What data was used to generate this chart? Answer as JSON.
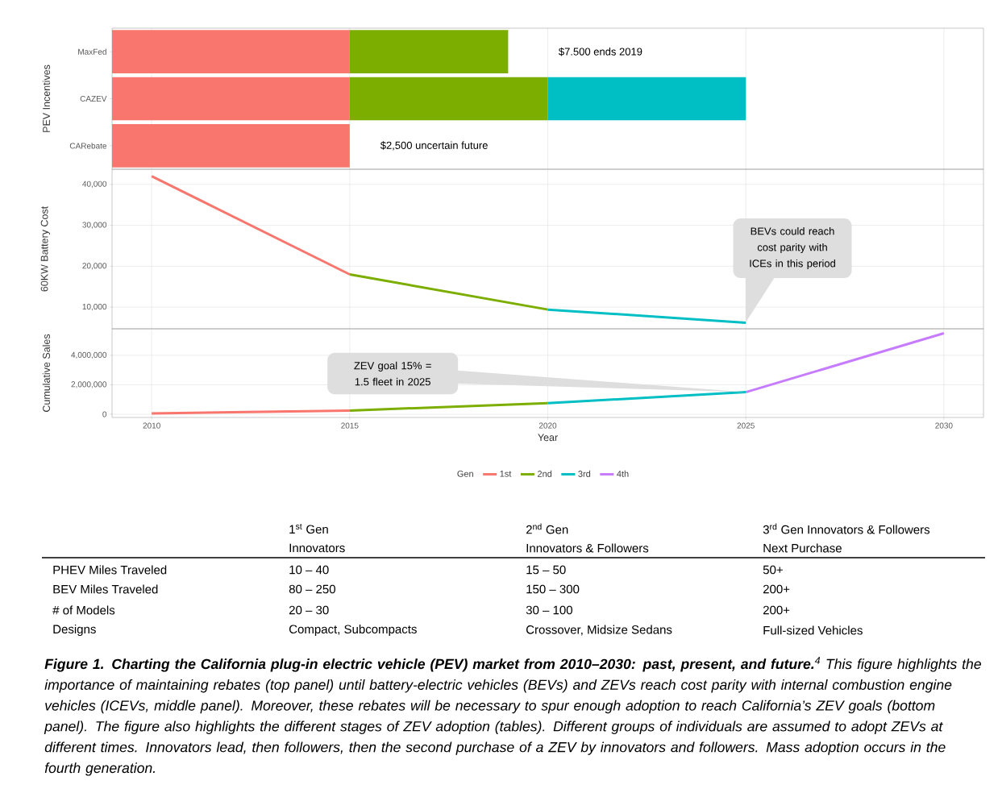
{
  "chart_data": [
    {
      "type": "bar",
      "orientation": "horizontal",
      "ylabel": "PEV Incentives",
      "categories": [
        "MaxFed",
        "CAZEV",
        "CARebate"
      ],
      "series": [
        {
          "color": "#f8766d",
          "base": [
            2009,
            2009,
            2009
          ],
          "values": [
            6,
            6,
            6
          ]
        },
        {
          "color": "#7cae00",
          "base": [
            2015,
            2015,
            null
          ],
          "values": [
            4,
            5,
            null
          ]
        },
        {
          "color": "#00bfc4",
          "base": [
            null,
            2020,
            null
          ],
          "values": [
            null,
            5,
            null
          ]
        }
      ],
      "xlim": [
        2009,
        2031
      ],
      "xticks": [
        2010,
        2015,
        2020,
        2025,
        2030
      ],
      "tick_labels": "y",
      "grid": "x",
      "annotations": [
        "$7.500 ends 2019",
        "$2,500 uncertain future"
      ]
    },
    {
      "type": "line",
      "ylabel": "60KW Battery Cost",
      "series": [
        {
          "color": "#f8766d",
          "x": [
            2010,
            2015
          ],
          "values": [
            42000,
            18000
          ]
        },
        {
          "color": "#7cae00",
          "x": [
            2015,
            2020
          ],
          "values": [
            18000,
            9400
          ]
        },
        {
          "color": "#00bfc4",
          "x": [
            2020,
            2025
          ],
          "values": [
            9400,
            6200
          ]
        }
      ],
      "xlim": [
        2009,
        2031
      ],
      "xticks": [
        2010,
        2015,
        2020,
        2025,
        2030
      ],
      "ylim": [
        4700,
        43700
      ],
      "yticks": [
        {
          "value": 10000,
          "label": "10,000"
        },
        {
          "value": 20000,
          "label": "20,000"
        },
        {
          "value": 30000,
          "label": "30,000"
        },
        {
          "value": 40000,
          "label": "40,000"
        }
      ],
      "tick_labels": "y",
      "grid": true,
      "annotations": [
        "BEVs could reach cost parity with ICEs in this period"
      ]
    },
    {
      "type": "line",
      "ylabel": "Cumulative Sales",
      "xlabel": "Year",
      "series": [
        {
          "name": "1st",
          "color": "#f8766d",
          "x": [
            2010,
            2015
          ],
          "values": [
            50000,
            250000
          ]
        },
        {
          "name": "2nd",
          "color": "#7cae00",
          "x": [
            2015,
            2020
          ],
          "values": [
            250000,
            750000
          ]
        },
        {
          "name": "3rd",
          "color": "#00bfc4",
          "x": [
            2020,
            2025
          ],
          "values": [
            750000,
            1500000
          ]
        },
        {
          "name": "4th",
          "color": "#c77cff",
          "x": [
            2025,
            2030
          ],
          "values": [
            1500000,
            5500000
          ]
        }
      ],
      "xlim": [
        2009,
        2031
      ],
      "xticks": [
        2010,
        2015,
        2020,
        2025,
        2030
      ],
      "ylim": [
        -220000,
        5800000
      ],
      "yticks": [
        0,
        {
          "value": 2000000,
          "label": "2,000,000"
        },
        {
          "value": 4000000,
          "label": "4,000,000"
        }
      ],
      "grid": true,
      "legend": "bottom",
      "legend_title": "Gen",
      "annotations": [
        {
          "text": "ZEV goal 15% = 1.5 fleet in 2025",
          "x": 2025,
          "y": 1500000
        }
      ]
    },
    {
      "type": "other",
      "annotations": [
        "1$^{st}$ Gen",
        "Innovators",
        "2$^{nd}$ Gen",
        "Innovators & Followers",
        "3$^{rd}$ Gen Innovators & Followers",
        "Next Purchase",
        "PHEV Miles Traveled",
        "10 – 40",
        "15 – 50",
        "50+",
        "BEV Miles Traveled",
        "80 – 250",
        "150 – 300",
        "200+",
        "# of Models",
        "20 – 30",
        "30 – 100",
        "200+",
        "Designs",
        "Compact, Subcompacts",
        "Crossover, Midsize Sedans",
        "Full-sized Vehicles",
        "**Figure 1. Charting the California plug-in electric vehicle (PEV) market from 2010–2030: past, present, and future.**$^{4}$ This figure highlights the importance of maintaining rebates (top panel) until battery-electric vehicles (BEVs) and ZEVs reach cost parity with internal combustion engine vehicles (ICEVs, middle panel). Moreover, these rebates will be necessary to spur enough adoption to reach California’s ZEV goals (bottom panel). The figure also highlights the different stages of ZEV adoption (tables). Different groups of individuals are assumed to adopt ZEVs at different times. Innovators lead, then followers, then the second purchase of a ZEV by innovators and followers. Mass adoption occurs in the fourth generation."
      ]
    }
  ]
}
